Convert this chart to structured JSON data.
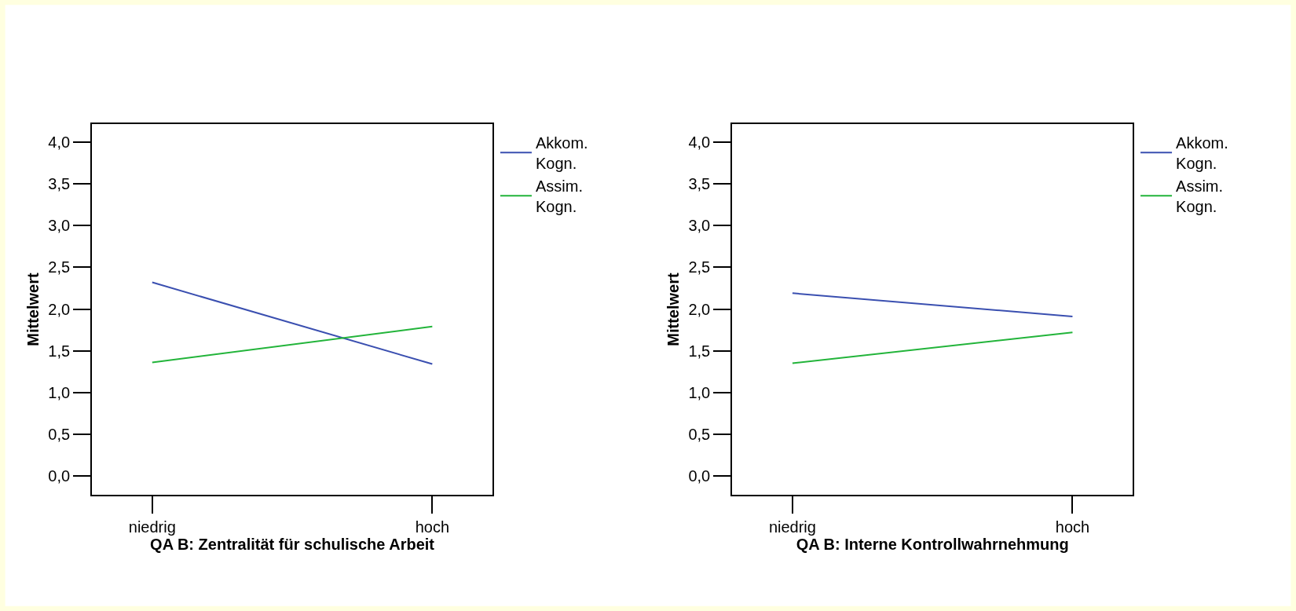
{
  "chart_data": [
    {
      "type": "line",
      "xlabel": "QA B: Zentralität für schulische Arbeit",
      "ylabel": "Mittelwert",
      "categories": [
        "niedrig",
        "hoch"
      ],
      "series": [
        {
          "name": "Akkom. Kogn.",
          "color": "#3a4fb0",
          "values": [
            2.32,
            1.34
          ]
        },
        {
          "name": "Assim. Kogn.",
          "color": "#22b43a",
          "values": [
            1.36,
            1.79
          ]
        }
      ],
      "ylim": [
        -0.23,
        4.22
      ],
      "yticks": [
        {
          "value": 0,
          "label": "0,0"
        },
        {
          "value": 0.5,
          "label": "0,5"
        },
        {
          "value": 1,
          "label": "1,0"
        },
        {
          "value": 1.5,
          "label": "1,5"
        },
        {
          "value": 2,
          "label": "2,0"
        },
        {
          "value": 2.5,
          "label": "2,5"
        },
        {
          "value": 3,
          "label": "3,0"
        },
        {
          "value": 3.5,
          "label": "3,5"
        },
        {
          "value": 4,
          "label": "4,0"
        }
      ],
      "legend": "top right",
      "marker": "none",
      "line_style": "solid"
    },
    {
      "type": "line",
      "xlabel": "QA B: Interne Kontrollwahrnehmung",
      "ylabel": "Mittelwert",
      "categories": [
        "niedrig",
        "hoch"
      ],
      "series": [
        {
          "name": "Akkom. Kogn.",
          "color": "#3a4fb0",
          "values": [
            2.19,
            1.91
          ]
        },
        {
          "name": "Assim. Kogn.",
          "color": "#22b43a",
          "values": [
            1.35,
            1.72
          ]
        }
      ],
      "ylim": [
        -0.23,
        4.22
      ],
      "yticks": [
        {
          "value": 0,
          "label": "0,0"
        },
        {
          "value": 0.5,
          "label": "0,5"
        },
        {
          "value": 1,
          "label": "1,0"
        },
        {
          "value": 1.5,
          "label": "1,5"
        },
        {
          "value": 2,
          "label": "2,0"
        },
        {
          "value": 2.5,
          "label": "2,5"
        },
        {
          "value": 3,
          "label": "3,0"
        },
        {
          "value": 3.5,
          "label": "3,5"
        },
        {
          "value": 4,
          "label": "4,0"
        }
      ],
      "legend": "top right",
      "marker": "none",
      "line_style": "solid"
    }
  ]
}
